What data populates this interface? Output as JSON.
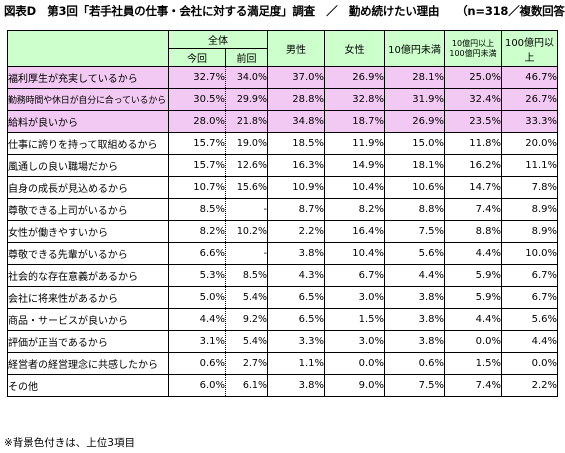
{
  "title": "図表D　第3回「若手社員の仕事・会社に対する満足度」調査　／　勤め続けたい理由　　（n=318／複数回答）",
  "headers": {
    "overall": "全体",
    "current": "今回",
    "previous": "前回",
    "male": "男性",
    "female": "女性",
    "under1b": "10億円未満",
    "mid_line1": "10億円以上",
    "mid_line2": "100億円未満",
    "over10b": "100億円以上"
  },
  "rows": [
    {
      "label": "福利厚生が充実しているから",
      "highlight": true,
      "values": [
        "32.7%",
        "34.0%",
        "37.0%",
        "26.9%",
        "28.1%",
        "25.0%",
        "46.7%"
      ]
    },
    {
      "label": "勤務時間や休日が自分に合っているから",
      "highlight": true,
      "values": [
        "30.5%",
        "29.9%",
        "28.8%",
        "32.8%",
        "31.9%",
        "32.4%",
        "26.7%"
      ]
    },
    {
      "label": "給料が良いから",
      "highlight": true,
      "values": [
        "28.0%",
        "21.8%",
        "34.8%",
        "18.7%",
        "26.9%",
        "23.5%",
        "33.3%"
      ]
    },
    {
      "label": "仕事に誇りを持って取組めるから",
      "highlight": false,
      "values": [
        "15.7%",
        "19.0%",
        "18.5%",
        "11.9%",
        "15.0%",
        "11.8%",
        "20.0%"
      ]
    },
    {
      "label": "風通しの良い職場だから",
      "highlight": false,
      "values": [
        "15.7%",
        "12.6%",
        "16.3%",
        "14.9%",
        "18.1%",
        "16.2%",
        "11.1%"
      ]
    },
    {
      "label": "自身の成長が見込めるから",
      "highlight": false,
      "values": [
        "10.7%",
        "15.6%",
        "10.9%",
        "10.4%",
        "10.6%",
        "14.7%",
        "7.8%"
      ]
    },
    {
      "label": "尊敬できる上司がいるから",
      "highlight": false,
      "values": [
        "8.5%",
        "-",
        "8.7%",
        "8.2%",
        "8.8%",
        "7.4%",
        "8.9%"
      ]
    },
    {
      "label": "女性が働きやすいから",
      "highlight": false,
      "values": [
        "8.2%",
        "10.2%",
        "2.2%",
        "16.4%",
        "7.5%",
        "8.8%",
        "8.9%"
      ]
    },
    {
      "label": "尊敬できる先輩がいるから",
      "highlight": false,
      "values": [
        "6.6%",
        "-",
        "3.8%",
        "10.4%",
        "5.6%",
        "4.4%",
        "10.0%"
      ]
    },
    {
      "label": "社会的な存在意義があるから",
      "highlight": false,
      "values": [
        "5.3%",
        "8.5%",
        "4.3%",
        "6.7%",
        "4.4%",
        "5.9%",
        "6.7%"
      ]
    },
    {
      "label": "会社に将来性があるから",
      "highlight": false,
      "values": [
        "5.0%",
        "5.4%",
        "6.5%",
        "3.0%",
        "3.8%",
        "5.9%",
        "6.7%"
      ]
    },
    {
      "label": "商品・サービスが良いから",
      "highlight": false,
      "values": [
        "4.4%",
        "9.2%",
        "6.5%",
        "1.5%",
        "3.8%",
        "4.4%",
        "5.6%"
      ]
    },
    {
      "label": "評価が正当であるから",
      "highlight": false,
      "values": [
        "3.1%",
        "5.4%",
        "3.3%",
        "3.0%",
        "3.8%",
        "0.0%",
        "4.4%"
      ]
    },
    {
      "label": "経営者の経営理念に共感したから",
      "highlight": false,
      "values": [
        "0.6%",
        "2.7%",
        "1.1%",
        "0.0%",
        "0.6%",
        "1.5%",
        "0.0%"
      ]
    },
    {
      "label": "その他",
      "highlight": false,
      "values": [
        "6.0%",
        "6.1%",
        "3.8%",
        "9.0%",
        "7.5%",
        "7.4%",
        "2.2%"
      ]
    }
  ],
  "note": "※背景色付きは、上位3項目",
  "colors": {
    "header_bg": "#ccffcc",
    "highlight_bg": "#f2c9f2"
  }
}
